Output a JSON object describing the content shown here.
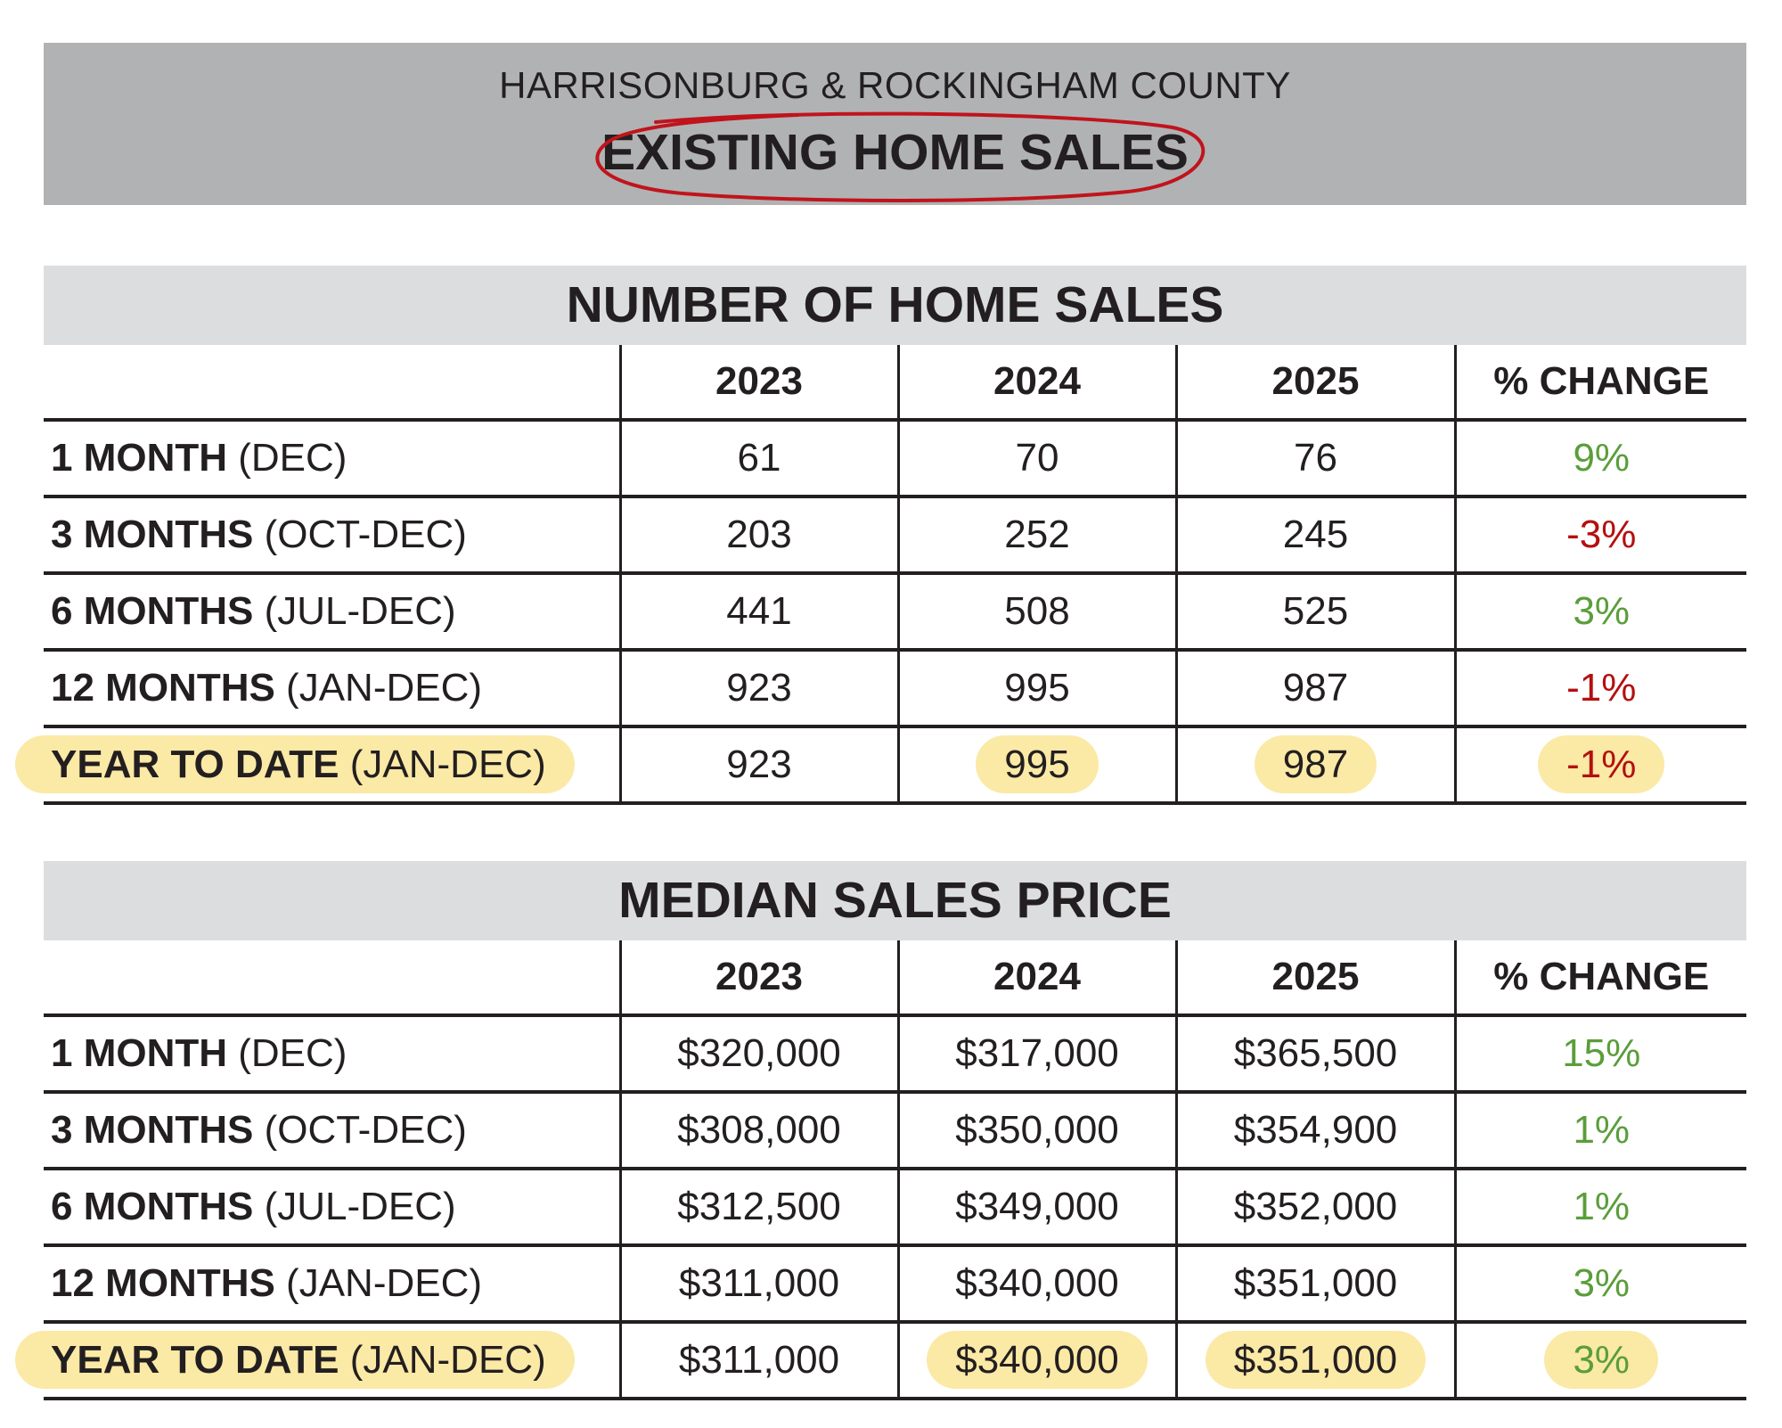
{
  "header": {
    "subtitle": "HARRISONBURG & ROCKINGHAM COUNTY",
    "title": "EXISTING HOME SALES"
  },
  "colors": {
    "header_bg": "#b1b2b4",
    "section_bg": "#dcdddf",
    "positive": "#5a9e3a",
    "negative": "#b50f0f",
    "highlight": "#fbe9a6",
    "circle": "#c0141c"
  },
  "sales": {
    "title": "NUMBER OF HOME SALES",
    "columns": [
      "2023",
      "2024",
      "2025",
      "% CHANGE"
    ],
    "rows": [
      {
        "label_bold": "1 MONTH",
        "label_rest": " (DEC)",
        "v2023": "61",
        "v2024": "70",
        "v2025": "76",
        "change": "9%"
      },
      {
        "label_bold": "3 MONTHS",
        "label_rest": " (OCT-DEC)",
        "v2023": "203",
        "v2024": "252",
        "v2025": "245",
        "change": "-3%"
      },
      {
        "label_bold": "6 MONTHS",
        "label_rest": " (JUL-DEC)",
        "v2023": "441",
        "v2024": "508",
        "v2025": "525",
        "change": "3%"
      },
      {
        "label_bold": "12 MONTHS",
        "label_rest": " (JAN-DEC)",
        "v2023": "923",
        "v2024": "995",
        "v2025": "987",
        "change": "-1%"
      },
      {
        "label_bold": "YEAR TO DATE",
        "label_rest": " (JAN-DEC)",
        "v2023": "923",
        "v2024": "995",
        "v2025": "987",
        "change": "-1%"
      }
    ]
  },
  "price": {
    "title": "MEDIAN SALES PRICE",
    "columns": [
      "2023",
      "2024",
      "2025",
      "% CHANGE"
    ],
    "rows": [
      {
        "label_bold": "1 MONTH",
        "label_rest": " (DEC)",
        "v2023": "$320,000",
        "v2024": "$317,000",
        "v2025": "$365,500",
        "change": "15%"
      },
      {
        "label_bold": "3 MONTHS",
        "label_rest": " (OCT-DEC)",
        "v2023": "$308,000",
        "v2024": "$350,000",
        "v2025": "$354,900",
        "change": "1%"
      },
      {
        "label_bold": "6 MONTHS",
        "label_rest": " (JUL-DEC)",
        "v2023": "$312,500",
        "v2024": "$349,000",
        "v2025": "$352,000",
        "change": "1%"
      },
      {
        "label_bold": "12 MONTHS",
        "label_rest": " (JAN-DEC)",
        "v2023": "$311,000",
        "v2024": "$340,000",
        "v2025": "$351,000",
        "change": "3%"
      },
      {
        "label_bold": "YEAR TO DATE",
        "label_rest": " (JAN-DEC)",
        "v2023": "$311,000",
        "v2024": "$340,000",
        "v2025": "$351,000",
        "change": "3%"
      }
    ]
  }
}
